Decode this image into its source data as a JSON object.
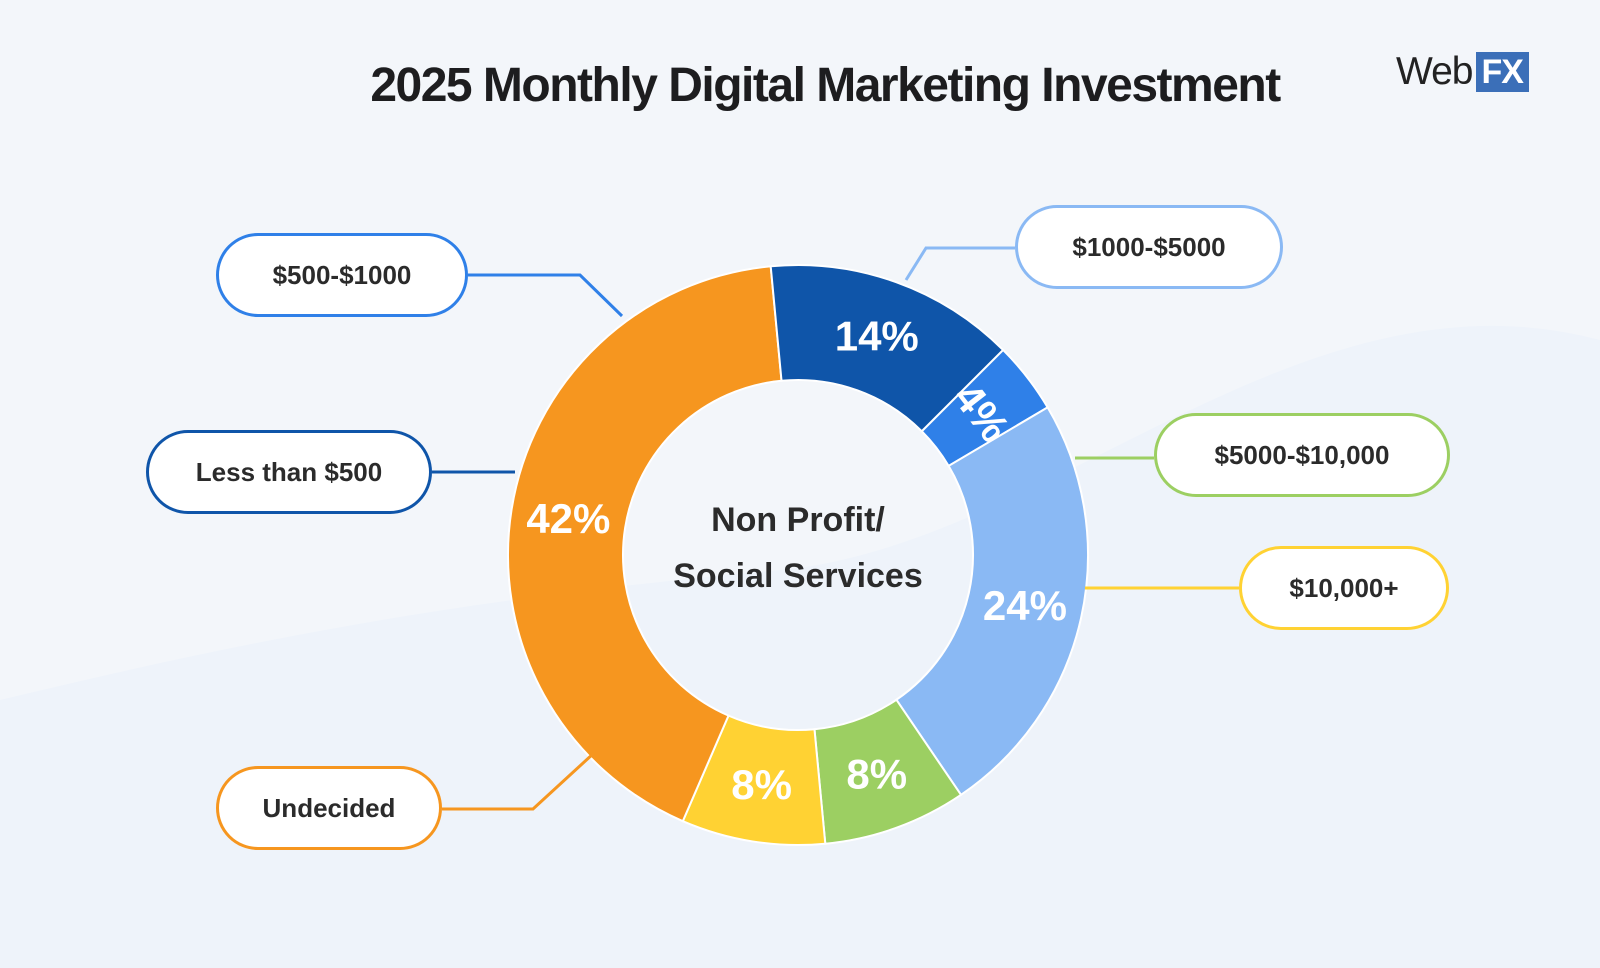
{
  "title": "2025 Monthly Digital Marketing Investment",
  "logo": {
    "text": "Web",
    "badge": "FX"
  },
  "center_label": {
    "line1": "Non Profit/",
    "line2": "Social Services"
  },
  "chart_data": {
    "type": "pie",
    "title": "2025 Monthly Digital Marketing Investment",
    "center_label": "Non Profit/ Social Services",
    "categories": [
      "$500-$1000",
      "$1000-$5000",
      "$5000-$10,000",
      "$10,000+",
      "Undecided",
      "Less than $500"
    ],
    "values": [
      4,
      24,
      8,
      8,
      42,
      14
    ],
    "value_labels": [
      "4%",
      "24%",
      "8%",
      "8%",
      "42%",
      "14%"
    ],
    "colors": [
      "#2f80e8",
      "#8ab9f4",
      "#9ccf62",
      "#ffd233",
      "#f6961f",
      "#0f55a9"
    ],
    "start_angle_deg": -45,
    "style": "donut"
  }
}
